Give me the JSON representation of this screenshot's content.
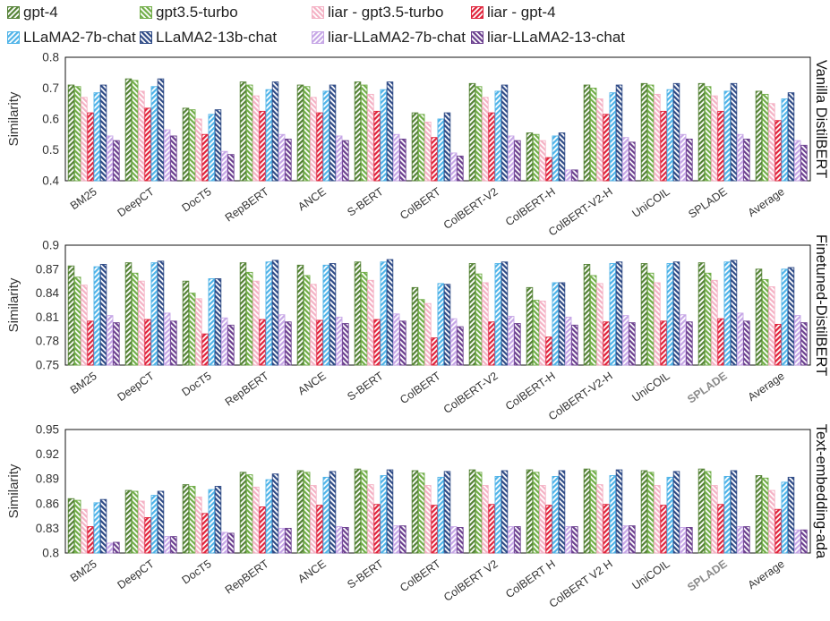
{
  "legend": [
    {
      "label": "gpt-4",
      "color": "#548235",
      "pattern": "forward"
    },
    {
      "label": "gpt3.5-turbo",
      "color": "#70AD47",
      "pattern": "back"
    },
    {
      "label": "liar - gpt3.5-turbo",
      "color": "#F4B1C4",
      "pattern": "back"
    },
    {
      "label": "liar - gpt-4",
      "color": "#E0223A",
      "pattern": "forward"
    },
    {
      "label": "LLaMA2-7b-chat",
      "color": "#4EB3E8",
      "pattern": "forward"
    },
    {
      "label": "LLaMA2-13b-chat",
      "color": "#2E4A86",
      "pattern": "back"
    },
    {
      "label": "liar-LLaMA2-7b-chat",
      "color": "#C6A6E6",
      "pattern": "forward"
    },
    {
      "label": "liar-LLaMA2-13-chat",
      "color": "#6A3E8E",
      "pattern": "back"
    }
  ],
  "chart_data": [
    {
      "type": "bar",
      "panel_title": "Vanilla DistilBERT",
      "ylabel": "Similarity",
      "ylim": [
        0.4,
        0.8
      ],
      "yticks": [
        "0.4",
        "0.5",
        "0.6",
        "0.7",
        "0.8"
      ],
      "categories": [
        "BM25",
        "DeepCT",
        "DocT5",
        "RepBERT",
        "ANCE",
        "S-BERT",
        "ColBERT",
        "ColBERT-V2",
        "ColBERT-H",
        "ColBERT-V2-H",
        "UniCOIL",
        "SPLADE",
        "Average"
      ],
      "series": [
        {
          "name": "gpt-4",
          "values": [
            0.71,
            0.73,
            0.635,
            0.72,
            0.71,
            0.72,
            0.62,
            0.715,
            0.555,
            0.71,
            0.715,
            0.715,
            0.69
          ]
        },
        {
          "name": "gpt3.5-turbo",
          "values": [
            0.705,
            0.725,
            0.63,
            0.71,
            0.705,
            0.71,
            0.615,
            0.705,
            0.55,
            0.7,
            0.71,
            0.705,
            0.68
          ]
        },
        {
          "name": "liar - gpt3.5-turbo",
          "values": [
            0.67,
            0.69,
            0.6,
            0.675,
            0.67,
            0.68,
            0.59,
            0.67,
            0.53,
            0.665,
            0.68,
            0.675,
            0.65
          ]
        },
        {
          "name": "liar - gpt-4",
          "values": [
            0.62,
            0.635,
            0.55,
            0.625,
            0.62,
            0.625,
            0.54,
            0.62,
            0.475,
            0.615,
            0.625,
            0.625,
            0.595
          ]
        },
        {
          "name": "LLaMA2-7b-chat",
          "values": [
            0.685,
            0.705,
            0.615,
            0.695,
            0.69,
            0.695,
            0.6,
            0.69,
            0.545,
            0.685,
            0.695,
            0.69,
            0.665
          ]
        },
        {
          "name": "LLaMA2-13b-chat",
          "values": [
            0.71,
            0.73,
            0.63,
            0.72,
            0.71,
            0.72,
            0.62,
            0.71,
            0.555,
            0.71,
            0.715,
            0.715,
            0.685
          ]
        },
        {
          "name": "liar-LLaMA2-7b-chat",
          "values": [
            0.545,
            0.565,
            0.495,
            0.55,
            0.545,
            0.55,
            0.49,
            0.545,
            0.435,
            0.54,
            0.55,
            0.55,
            0.53
          ]
        },
        {
          "name": "liar-LLaMA2-13-chat",
          "values": [
            0.53,
            0.545,
            0.485,
            0.535,
            0.53,
            0.535,
            0.48,
            0.53,
            0.435,
            0.525,
            0.535,
            0.535,
            0.515
          ]
        }
      ]
    },
    {
      "type": "bar",
      "panel_title": "Finetuned-DistilBERT",
      "ylabel": "Similarity",
      "ylim": [
        0.75,
        0.9
      ],
      "yticks": [
        "0.75",
        "0.78",
        "0.81",
        "0.84",
        "0.87",
        "0.9"
      ],
      "categories": [
        "BM25",
        "DeepCT",
        "DocT5",
        "RepBERT",
        "ANCE",
        "S-BERT",
        "ColBERT",
        "ColBERT-V2",
        "ColBERT-H",
        "ColBERT-V2-H",
        "UniCOIL",
        "SPLADE",
        "Average"
      ],
      "series": [
        {
          "name": "gpt-4",
          "values": [
            0.874,
            0.878,
            0.855,
            0.878,
            0.875,
            0.879,
            0.847,
            0.877,
            0.847,
            0.876,
            0.877,
            0.878,
            0.87
          ]
        },
        {
          "name": "gpt3.5-turbo",
          "values": [
            0.86,
            0.865,
            0.84,
            0.866,
            0.862,
            0.866,
            0.832,
            0.864,
            0.831,
            0.862,
            0.865,
            0.865,
            0.857
          ]
        },
        {
          "name": "liar - gpt3.5-turbo",
          "values": [
            0.85,
            0.855,
            0.833,
            0.855,
            0.851,
            0.856,
            0.827,
            0.853,
            0.83,
            0.852,
            0.853,
            0.856,
            0.848
          ]
        },
        {
          "name": "liar - gpt-4",
          "values": [
            0.805,
            0.807,
            0.789,
            0.807,
            0.806,
            0.807,
            0.784,
            0.804,
            0.785,
            0.804,
            0.805,
            0.808,
            0.801
          ]
        },
        {
          "name": "LLaMA2-7b-chat",
          "values": [
            0.873,
            0.878,
            0.858,
            0.879,
            0.875,
            0.879,
            0.852,
            0.877,
            0.853,
            0.877,
            0.877,
            0.879,
            0.87
          ]
        },
        {
          "name": "LLaMA2-13b-chat",
          "values": [
            0.876,
            0.88,
            0.858,
            0.881,
            0.877,
            0.882,
            0.851,
            0.879,
            0.853,
            0.879,
            0.879,
            0.881,
            0.872
          ]
        },
        {
          "name": "liar-LLaMA2-7b-chat",
          "values": [
            0.812,
            0.815,
            0.809,
            0.813,
            0.81,
            0.814,
            0.808,
            0.811,
            0.81,
            0.812,
            0.813,
            0.815,
            0.812
          ]
        },
        {
          "name": "liar-LLaMA2-13-chat",
          "values": [
            0.803,
            0.805,
            0.8,
            0.804,
            0.802,
            0.805,
            0.798,
            0.802,
            0.8,
            0.803,
            0.804,
            0.805,
            0.803
          ]
        }
      ]
    },
    {
      "type": "bar",
      "panel_title": "Text-embedding-ada",
      "ylabel": "Similarity",
      "ylim": [
        0.8,
        0.95
      ],
      "yticks": [
        "0.8",
        "0.83",
        "0.86",
        "0.89",
        "0.92",
        "0.95"
      ],
      "categories": [
        "BM25",
        "DeepCT",
        "DocT5",
        "RepBERT",
        "ANCE",
        "S-BERT",
        "ColBERT",
        "ColBERT V2",
        "ColBERT H",
        "ColBERT V2 H",
        "UniCOIL",
        "SPLADE",
        "Average"
      ],
      "series": [
        {
          "name": "gpt-4",
          "values": [
            0.866,
            0.876,
            0.883,
            0.898,
            0.9,
            0.902,
            0.9,
            0.901,
            0.901,
            0.902,
            0.9,
            0.902,
            0.894
          ]
        },
        {
          "name": "gpt3.5-turbo",
          "values": [
            0.864,
            0.875,
            0.881,
            0.895,
            0.898,
            0.9,
            0.897,
            0.898,
            0.898,
            0.9,
            0.898,
            0.899,
            0.891
          ]
        },
        {
          "name": "liar - gpt3.5-turbo",
          "values": [
            0.853,
            0.863,
            0.868,
            0.88,
            0.882,
            0.883,
            0.882,
            0.882,
            0.882,
            0.883,
            0.882,
            0.882,
            0.876
          ]
        },
        {
          "name": "liar - gpt-4",
          "values": [
            0.832,
            0.843,
            0.848,
            0.856,
            0.858,
            0.859,
            0.858,
            0.859,
            0.858,
            0.859,
            0.858,
            0.859,
            0.853
          ]
        },
        {
          "name": "LLaMA2-7b-chat",
          "values": [
            0.861,
            0.87,
            0.877,
            0.889,
            0.892,
            0.894,
            0.892,
            0.893,
            0.893,
            0.894,
            0.892,
            0.893,
            0.886
          ]
        },
        {
          "name": "LLaMA2-13b-chat",
          "values": [
            0.865,
            0.875,
            0.881,
            0.896,
            0.899,
            0.901,
            0.899,
            0.9,
            0.9,
            0.901,
            0.899,
            0.9,
            0.892
          ]
        },
        {
          "name": "liar-LLaMA2-7b-chat",
          "values": [
            0.812,
            0.82,
            0.825,
            0.83,
            0.832,
            0.833,
            0.832,
            0.832,
            0.832,
            0.833,
            0.831,
            0.832,
            0.828
          ]
        },
        {
          "name": "liar-LLaMA2-13-chat",
          "values": [
            0.813,
            0.82,
            0.824,
            0.83,
            0.831,
            0.833,
            0.831,
            0.832,
            0.832,
            0.833,
            0.831,
            0.832,
            0.828
          ]
        }
      ]
    }
  ],
  "bold_gray_tick": "SPLADE"
}
